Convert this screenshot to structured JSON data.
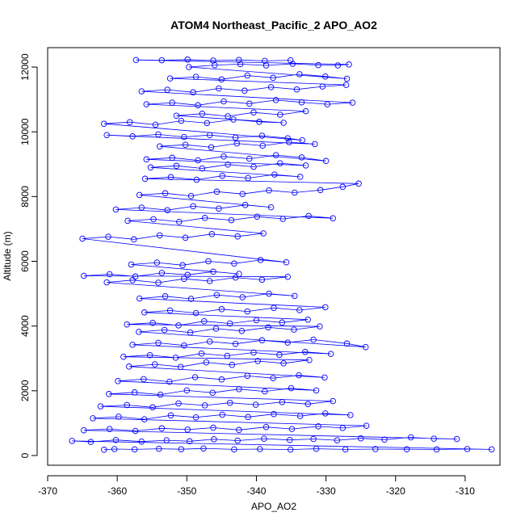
{
  "chart_data": {
    "type": "scatter",
    "title": "ATOM4 Northeast_Pacific_2 APO_AO2",
    "xlabel": "APO_AO2",
    "ylabel": "Altitude (m)",
    "xlim": [
      -370,
      -305
    ],
    "ylim": [
      -300,
      12600
    ],
    "x_ticks": [
      -370,
      -360,
      -350,
      -340,
      -330,
      -320,
      -310
    ],
    "y_ticks": [
      0,
      2000,
      4000,
      6000,
      8000,
      10000,
      12000
    ],
    "x_tick_labels": [
      "-370",
      "-360",
      "-350",
      "-340",
      "-330",
      "-320",
      "-310"
    ],
    "y_tick_labels": [
      "0",
      "2000",
      "4000",
      "6000",
      "8000",
      "10000",
      "12000"
    ],
    "grid": false,
    "series": [
      {
        "marker": "open-circle",
        "line": true,
        "color": "#0000ff",
        "points": [
          [
            -361.9,
            180
          ],
          [
            -360.4,
            200
          ],
          [
            -357.5,
            190
          ],
          [
            -354.0,
            210
          ],
          [
            -350.8,
            195
          ],
          [
            -347.6,
            220
          ],
          [
            -343.2,
            190
          ],
          [
            -339.5,
            200
          ],
          [
            -335.1,
            185
          ],
          [
            -331.4,
            210
          ],
          [
            -327.2,
            190
          ],
          [
            -322.9,
            200
          ],
          [
            -318.4,
            195
          ],
          [
            -314.1,
            190
          ],
          [
            -309.7,
            200
          ],
          [
            -306.2,
            190
          ],
          [
            -366.5,
            450
          ],
          [
            -363.8,
            420
          ],
          [
            -360.2,
            480
          ],
          [
            -356.5,
            430
          ],
          [
            -352.9,
            470
          ],
          [
            -349.6,
            440
          ],
          [
            -346.1,
            500
          ],
          [
            -342.7,
            460
          ],
          [
            -338.9,
            520
          ],
          [
            -335.2,
            480
          ],
          [
            -331.8,
            510
          ],
          [
            -328.4,
            470
          ],
          [
            -325.0,
            530
          ],
          [
            -321.6,
            490
          ],
          [
            -317.8,
            560
          ],
          [
            -314.5,
            520
          ],
          [
            -311.2,
            510
          ],
          [
            -364.8,
            780
          ],
          [
            -361.1,
            820
          ],
          [
            -357.4,
            760
          ],
          [
            -353.6,
            840
          ],
          [
            -349.9,
            800
          ],
          [
            -346.2,
            860
          ],
          [
            -342.5,
            790
          ],
          [
            -338.6,
            880
          ],
          [
            -334.9,
            820
          ],
          [
            -331.1,
            900
          ],
          [
            -327.6,
            850
          ],
          [
            -324.2,
            920
          ],
          [
            -363.5,
            1150
          ],
          [
            -359.8,
            1200
          ],
          [
            -356.1,
            1120
          ],
          [
            -352.3,
            1240
          ],
          [
            -348.7,
            1180
          ],
          [
            -344.9,
            1260
          ],
          [
            -341.2,
            1190
          ],
          [
            -337.5,
            1280
          ],
          [
            -333.7,
            1220
          ],
          [
            -330.1,
            1300
          ],
          [
            -326.5,
            1250
          ],
          [
            -362.4,
            1520
          ],
          [
            -358.6,
            1560
          ],
          [
            -354.9,
            1490
          ],
          [
            -351.2,
            1610
          ],
          [
            -347.4,
            1550
          ],
          [
            -343.8,
            1630
          ],
          [
            -340.1,
            1570
          ],
          [
            -336.3,
            1650
          ],
          [
            -332.6,
            1590
          ],
          [
            -329.0,
            1680
          ],
          [
            -361.2,
            1900
          ],
          [
            -357.5,
            1950
          ],
          [
            -353.8,
            1880
          ],
          [
            -350.0,
            2010
          ],
          [
            -346.3,
            1940
          ],
          [
            -342.5,
            2050
          ],
          [
            -338.8,
            1980
          ],
          [
            -335.0,
            2080
          ],
          [
            -331.4,
            2010
          ],
          [
            -359.9,
            2300
          ],
          [
            -356.2,
            2360
          ],
          [
            -352.5,
            2280
          ],
          [
            -348.8,
            2420
          ],
          [
            -345.0,
            2350
          ],
          [
            -341.3,
            2460
          ],
          [
            -337.6,
            2390
          ],
          [
            -333.9,
            2480
          ],
          [
            -330.2,
            2410
          ],
          [
            -358.3,
            2750
          ],
          [
            -354.6,
            2820
          ],
          [
            -350.9,
            2740
          ],
          [
            -347.2,
            2880
          ],
          [
            -343.5,
            2800
          ],
          [
            -339.8,
            2920
          ],
          [
            -336.1,
            2850
          ],
          [
            -332.4,
            2950
          ],
          [
            -359.1,
            3050
          ],
          [
            -355.3,
            3100
          ],
          [
            -351.6,
            3020
          ],
          [
            -347.9,
            3150
          ],
          [
            -344.2,
            3080
          ],
          [
            -340.4,
            3180
          ],
          [
            -336.7,
            3110
          ],
          [
            -333.0,
            3200
          ],
          [
            -329.3,
            3140
          ],
          [
            -357.8,
            3420
          ],
          [
            -354.1,
            3480
          ],
          [
            -350.4,
            3400
          ],
          [
            -346.7,
            3520
          ],
          [
            -343.0,
            3450
          ],
          [
            -339.2,
            3560
          ],
          [
            -335.5,
            3490
          ],
          [
            -331.8,
            3580
          ],
          [
            -327.0,
            3460
          ],
          [
            -324.3,
            3350
          ],
          [
            -356.9,
            3820
          ],
          [
            -353.2,
            3880
          ],
          [
            -349.5,
            3800
          ],
          [
            -345.8,
            3920
          ],
          [
            -342.1,
            3850
          ],
          [
            -338.3,
            3960
          ],
          [
            -334.6,
            3890
          ],
          [
            -330.9,
            3990
          ],
          [
            -358.6,
            4050
          ],
          [
            -354.9,
            4100
          ],
          [
            -351.2,
            4020
          ],
          [
            -347.5,
            4150
          ],
          [
            -343.8,
            4080
          ],
          [
            -340.0,
            4180
          ],
          [
            -336.3,
            4110
          ],
          [
            -332.6,
            4200
          ],
          [
            -356.1,
            4420
          ],
          [
            -352.4,
            4480
          ],
          [
            -348.7,
            4400
          ],
          [
            -345.0,
            4520
          ],
          [
            -341.3,
            4450
          ],
          [
            -337.5,
            4560
          ],
          [
            -333.8,
            4490
          ],
          [
            -330.1,
            4580
          ],
          [
            -356.8,
            4850
          ],
          [
            -353.1,
            4920
          ],
          [
            -349.4,
            4840
          ],
          [
            -345.7,
            4960
          ],
          [
            -342.0,
            4890
          ],
          [
            -338.2,
            5000
          ],
          [
            -334.5,
            4930
          ],
          [
            -361.5,
            5350
          ],
          [
            -357.8,
            5420
          ],
          [
            -354.1,
            5340
          ],
          [
            -350.4,
            5460
          ],
          [
            -346.7,
            5390
          ],
          [
            -343.0,
            5500
          ],
          [
            -339.2,
            5430
          ],
          [
            -335.5,
            5520
          ],
          [
            -364.8,
            5550
          ],
          [
            -361.1,
            5600
          ],
          [
            -357.4,
            5530
          ],
          [
            -353.6,
            5640
          ],
          [
            -349.9,
            5580
          ],
          [
            -346.2,
            5680
          ],
          [
            -342.5,
            5610
          ],
          [
            -358.0,
            5900
          ],
          [
            -354.3,
            5960
          ],
          [
            -350.6,
            5880
          ],
          [
            -346.9,
            6000
          ],
          [
            -343.2,
            5930
          ],
          [
            -339.4,
            6040
          ],
          [
            -335.7,
            5970
          ],
          [
            -365.0,
            6700
          ],
          [
            -361.3,
            6760
          ],
          [
            -357.6,
            6680
          ],
          [
            -353.9,
            6800
          ],
          [
            -350.2,
            6730
          ],
          [
            -346.4,
            6840
          ],
          [
            -342.7,
            6770
          ],
          [
            -339.0,
            6860
          ],
          [
            -358.5,
            7250
          ],
          [
            -354.8,
            7300
          ],
          [
            -351.1,
            7220
          ],
          [
            -347.4,
            7340
          ],
          [
            -343.6,
            7270
          ],
          [
            -339.9,
            7380
          ],
          [
            -336.2,
            7310
          ],
          [
            -332.5,
            7400
          ],
          [
            -329.0,
            7330
          ],
          [
            -360.2,
            7600
          ],
          [
            -356.5,
            7660
          ],
          [
            -352.8,
            7580
          ],
          [
            -349.1,
            7700
          ],
          [
            -345.4,
            7630
          ],
          [
            -341.6,
            7740
          ],
          [
            -337.9,
            7670
          ],
          [
            -356.8,
            8050
          ],
          [
            -353.1,
            8100
          ],
          [
            -349.4,
            8020
          ],
          [
            -345.7,
            8150
          ],
          [
            -342.0,
            8080
          ],
          [
            -338.2,
            8190
          ],
          [
            -334.5,
            8120
          ],
          [
            -330.8,
            8200
          ],
          [
            -327.6,
            8300
          ],
          [
            -325.3,
            8400
          ],
          [
            -356.0,
            8550
          ],
          [
            -352.3,
            8600
          ],
          [
            -348.6,
            8520
          ],
          [
            -344.9,
            8640
          ],
          [
            -341.2,
            8570
          ],
          [
            -337.4,
            8680
          ],
          [
            -333.7,
            8610
          ],
          [
            -355.2,
            8900
          ],
          [
            -351.5,
            8950
          ],
          [
            -347.8,
            8870
          ],
          [
            -344.1,
            8990
          ],
          [
            -340.4,
            8920
          ],
          [
            -336.6,
            9030
          ],
          [
            -332.9,
            8960
          ],
          [
            -355.8,
            9150
          ],
          [
            -352.1,
            9200
          ],
          [
            -348.4,
            9120
          ],
          [
            -344.7,
            9240
          ],
          [
            -341.0,
            9170
          ],
          [
            -337.2,
            9280
          ],
          [
            -333.5,
            9210
          ],
          [
            -330.0,
            9100
          ],
          [
            -353.9,
            9550
          ],
          [
            -350.2,
            9600
          ],
          [
            -346.5,
            9520
          ],
          [
            -342.8,
            9640
          ],
          [
            -339.1,
            9570
          ],
          [
            -335.3,
            9680
          ],
          [
            -331.6,
            9620
          ],
          [
            -361.5,
            9900
          ],
          [
            -357.8,
            9860
          ],
          [
            -354.1,
            9920
          ],
          [
            -350.4,
            9840
          ],
          [
            -346.7,
            9900
          ],
          [
            -343.0,
            9820
          ],
          [
            -339.2,
            9880
          ],
          [
            -335.5,
            9800
          ],
          [
            -333.4,
            9740
          ],
          [
            -361.9,
            10250
          ],
          [
            -358.2,
            10300
          ],
          [
            -354.5,
            10220
          ],
          [
            -350.8,
            10340
          ],
          [
            -347.1,
            10270
          ],
          [
            -343.3,
            10380
          ],
          [
            -339.6,
            10310
          ],
          [
            -336.1,
            10280
          ],
          [
            -351.5,
            10500
          ],
          [
            -347.8,
            10560
          ],
          [
            -344.1,
            10480
          ],
          [
            -340.4,
            10600
          ],
          [
            -336.6,
            10530
          ],
          [
            -332.9,
            10640
          ],
          [
            -355.8,
            10850
          ],
          [
            -352.1,
            10900
          ],
          [
            -348.4,
            10820
          ],
          [
            -344.7,
            10940
          ],
          [
            -341.0,
            10870
          ],
          [
            -337.2,
            10980
          ],
          [
            -333.5,
            10910
          ],
          [
            -329.8,
            10850
          ],
          [
            -326.2,
            10900
          ],
          [
            -356.5,
            11250
          ],
          [
            -352.8,
            11300
          ],
          [
            -349.1,
            11220
          ],
          [
            -345.4,
            11340
          ],
          [
            -341.7,
            11270
          ],
          [
            -337.9,
            11380
          ],
          [
            -334.2,
            11310
          ],
          [
            -330.5,
            11400
          ],
          [
            -327.1,
            11450
          ],
          [
            -352.4,
            11650
          ],
          [
            -348.7,
            11700
          ],
          [
            -345.0,
            11620
          ],
          [
            -341.3,
            11740
          ],
          [
            -337.6,
            11670
          ],
          [
            -333.8,
            11780
          ],
          [
            -330.1,
            11710
          ],
          [
            -327.0,
            11640
          ],
          [
            -349.7,
            12000
          ],
          [
            -346.0,
            12060
          ],
          [
            -342.3,
            12090
          ],
          [
            -338.6,
            12050
          ],
          [
            -334.8,
            12100
          ],
          [
            -331.1,
            12060
          ],
          [
            -328.3,
            12050
          ],
          [
            -326.7,
            12080
          ],
          [
            -357.3,
            12220
          ],
          [
            -353.6,
            12210
          ],
          [
            -349.9,
            12230
          ],
          [
            -346.2,
            12200
          ],
          [
            -342.5,
            12220
          ],
          [
            -338.8,
            12190
          ],
          [
            -335.1,
            12210
          ]
        ]
      }
    ]
  }
}
